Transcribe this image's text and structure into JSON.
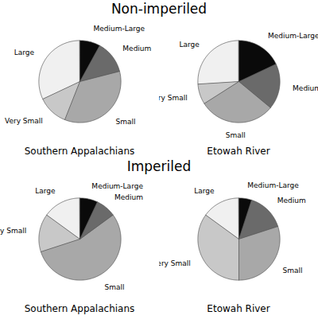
{
  "chart_data": [
    {
      "type": "pie",
      "title": "Non-imperiled",
      "subtitle": "Southern Appalachians",
      "categories": [
        "Large",
        "Very Small",
        "Small",
        "Medium",
        "Medium-Large"
      ],
      "values": [
        32,
        12,
        35,
        13,
        8
      ],
      "colors": [
        "#f0f0f0",
        "#c8c8c8",
        "#a8a8a8",
        "#6a6a6a",
        "#0a0a0a"
      ]
    },
    {
      "type": "pie",
      "subtitle": "Etowah River",
      "categories": [
        "Large",
        "Very Small",
        "Small",
        "Medium",
        "Medium-Large"
      ],
      "values": [
        26,
        8,
        30,
        18,
        18
      ],
      "colors": [
        "#f0f0f0",
        "#c8c8c8",
        "#a8a8a8",
        "#6a6a6a",
        "#0a0a0a"
      ]
    },
    {
      "type": "pie",
      "title": "Imperiled",
      "subtitle": "Southern Appalachians",
      "categories": [
        "Large",
        "Very Small",
        "Small",
        "Medium",
        "Medium-Large"
      ],
      "values": [
        15,
        15,
        55,
        8,
        7
      ],
      "colors": [
        "#f0f0f0",
        "#c8c8c8",
        "#a8a8a8",
        "#6a6a6a",
        "#0a0a0a"
      ]
    },
    {
      "type": "pie",
      "subtitle": "Etowah River",
      "categories": [
        "Large",
        "Very Small",
        "Small",
        "Medium",
        "Medium-Large"
      ],
      "values": [
        15,
        35,
        30,
        15,
        5
      ],
      "colors": [
        "#f0f0f0",
        "#c8c8c8",
        "#a8a8a8",
        "#6a6a6a",
        "#0a0a0a"
      ]
    }
  ]
}
